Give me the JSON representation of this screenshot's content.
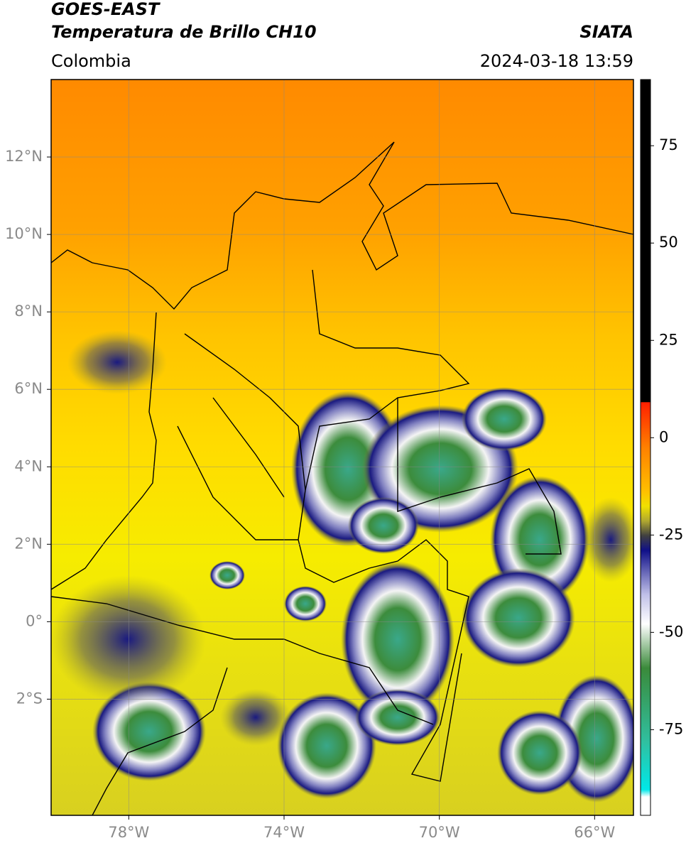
{
  "header": {
    "title": "GOES-EAST",
    "subtitle": "Temperatura de Brillo CH10",
    "source": "SIATA",
    "region": "Colombia",
    "timestamp": "2024-03-18 13:59"
  },
  "map": {
    "lonlim": [
      -80,
      -65
    ],
    "latlim": [
      -5,
      14
    ],
    "grid": true,
    "lonticks": [
      {
        "value": -78,
        "label": "78°W"
      },
      {
        "value": -74,
        "label": "74°W"
      },
      {
        "value": -70,
        "label": "70°W"
      },
      {
        "value": -66,
        "label": "66°W"
      }
    ],
    "latticks": [
      {
        "value": 12,
        "label": "12°N"
      },
      {
        "value": 10,
        "label": "10°N"
      },
      {
        "value": 8,
        "label": "8°N"
      },
      {
        "value": 6,
        "label": "6°N"
      },
      {
        "value": 4,
        "label": "4°N"
      },
      {
        "value": 2,
        "label": "2°N"
      },
      {
        "value": 0,
        "label": "0°"
      },
      {
        "value": -2,
        "label": "2°S"
      }
    ]
  },
  "colorbar": {
    "lim": [
      -97,
      92
    ],
    "ticks": [
      75,
      50,
      25,
      0,
      -25,
      -50,
      -75
    ]
  }
}
